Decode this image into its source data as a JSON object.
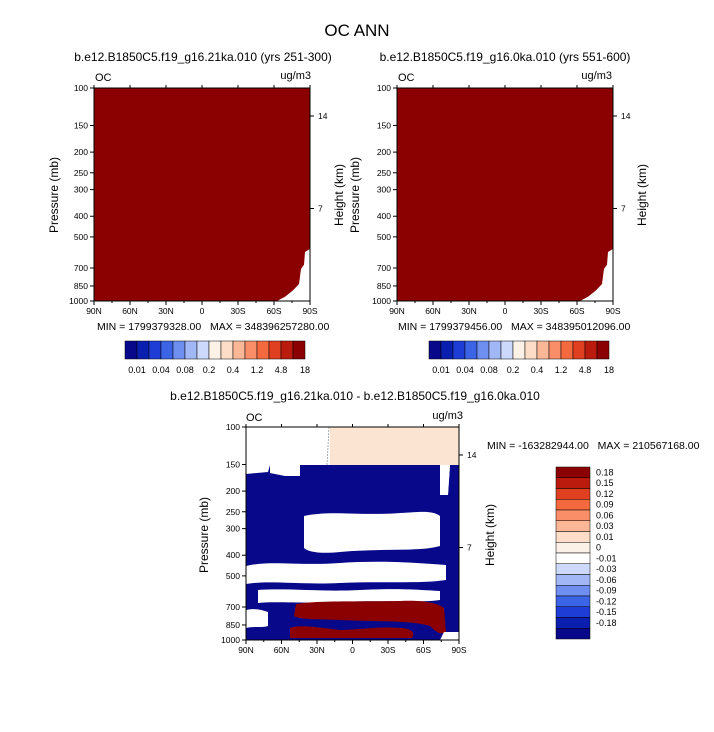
{
  "title": "OC ANN",
  "chart_data": [
    {
      "type": "heatmap",
      "title": "b.e12.B1850C5.f19_g16.21ka.010 (yrs 251-300)",
      "left_label": "OC",
      "right_label": "ug/m3",
      "xlabel": "",
      "ylabel": "Pressure (mb)",
      "y2label": "Height (km)",
      "x_ticks": [
        "90N",
        "60N",
        "30N",
        "0",
        "30S",
        "60S",
        "90S"
      ],
      "y_ticks": [
        "100",
        "150",
        "200",
        "250",
        "300",
        "400",
        "500",
        "700",
        "850",
        "1000"
      ],
      "y2_ticks": [
        "14",
        "7"
      ],
      "stats": "MIN = 1799379328.00   MAX = 348396257280.00",
      "fill_color": "#8b0000"
    },
    {
      "type": "heatmap",
      "title": "b.e12.B1850C5.f19_g16.0ka.010 (yrs 551-600)",
      "left_label": "OC",
      "right_label": "ug/m3",
      "xlabel": "",
      "ylabel": "Pressure (mb)",
      "y2label": "Height (km)",
      "x_ticks": [
        "90N",
        "60N",
        "30N",
        "0",
        "30S",
        "60S",
        "90S"
      ],
      "y_ticks": [
        "100",
        "150",
        "200",
        "250",
        "300",
        "400",
        "500",
        "700",
        "850",
        "1000"
      ],
      "y2_ticks": [
        "14",
        "7"
      ],
      "stats": "MIN = 1799379456.00   MAX = 348395012096.00",
      "fill_color": "#8b0000"
    },
    {
      "type": "heatmap",
      "title": "b.e12.B1850C5.f19_g16.21ka.010 - b.e12.B1850C5.f19_g16.0ka.010",
      "left_label": "OC",
      "right_label": "ug/m3",
      "xlabel": "",
      "ylabel": "Pressure (mb)",
      "y2label": "Height (km)",
      "x_ticks": [
        "90N",
        "60N",
        "30N",
        "0",
        "30S",
        "60S",
        "90S"
      ],
      "y_ticks": [
        "100",
        "150",
        "200",
        "250",
        "300",
        "400",
        "500",
        "700",
        "850",
        "1000"
      ],
      "y2_ticks": [
        "14",
        "7"
      ],
      "stats": "MIN = -163282944.00   MAX = 210567168.00"
    }
  ],
  "colorbar_top": {
    "labels": [
      "0.01",
      "0.04",
      "0.08",
      "0.2",
      "0.4",
      "1.2",
      "4.8",
      "18"
    ],
    "colors": [
      "#08088a",
      "#0a1fb0",
      "#1e3cd6",
      "#3c64e6",
      "#6e8ef0",
      "#a2b7f5",
      "#ccd9fa",
      "#fbf1e6",
      "#fddcc8",
      "#fcb796",
      "#f98e68",
      "#f46a3e",
      "#e04020",
      "#bb1b0c",
      "#8b0000"
    ]
  },
  "colorbar_diff": {
    "labels": [
      "0.18",
      "0.15",
      "0.12",
      "0.09",
      "0.06",
      "0.03",
      "0.01",
      "0",
      "-0.01",
      "-0.03",
      "-0.06",
      "-0.09",
      "-0.12",
      "-0.15",
      "-0.18"
    ],
    "colors": [
      "#8b0000",
      "#bb1b0c",
      "#e04020",
      "#f46a3e",
      "#f98e68",
      "#fcb796",
      "#fddcc8",
      "#fbf1e6",
      "#ffffff",
      "#ccd9fa",
      "#a2b7f5",
      "#6e8ef0",
      "#3c64e6",
      "#1e3cd6",
      "#0a1fb0",
      "#08088a"
    ]
  }
}
